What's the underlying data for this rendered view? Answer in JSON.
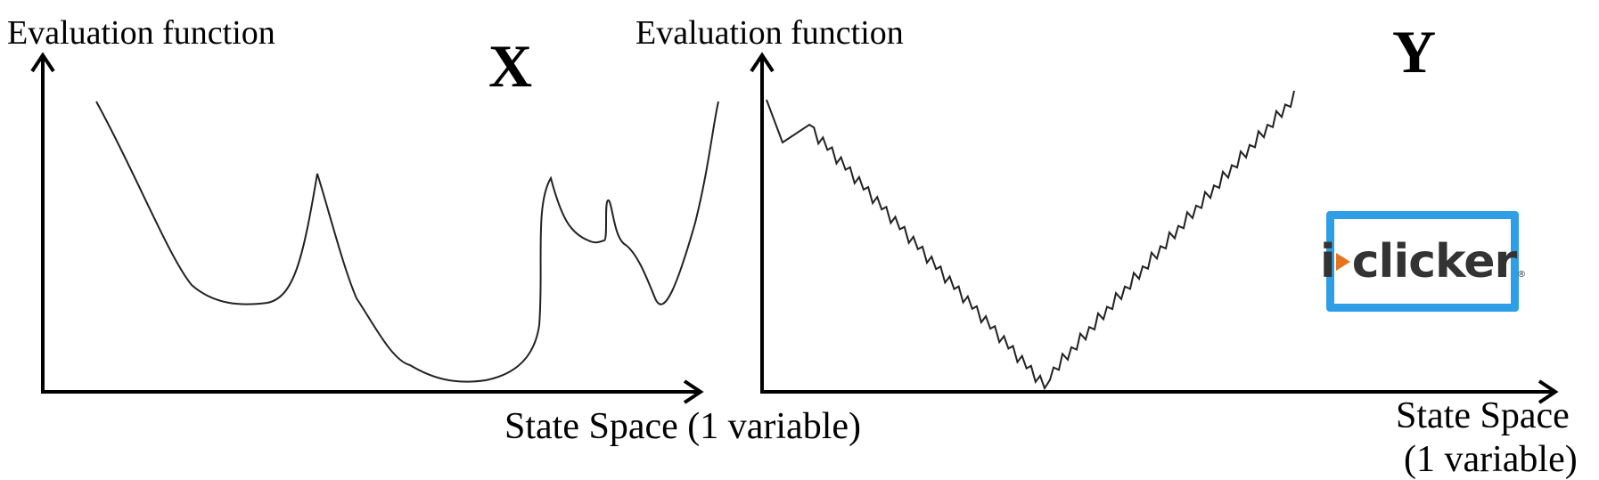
{
  "left_panel": {
    "y_axis_label": "Evaluation function",
    "x_axis_label": "State Space (1 variable)",
    "panel_letter": "X"
  },
  "right_panel": {
    "y_axis_label": "Evaluation function",
    "x_axis_label": "State Space",
    "x_axis_label_cut": "(1 variable)",
    "panel_letter": "Y"
  },
  "logo": {
    "brand_part1": "i",
    "brand_part2": "clicker",
    "registered_mark": "®"
  }
}
